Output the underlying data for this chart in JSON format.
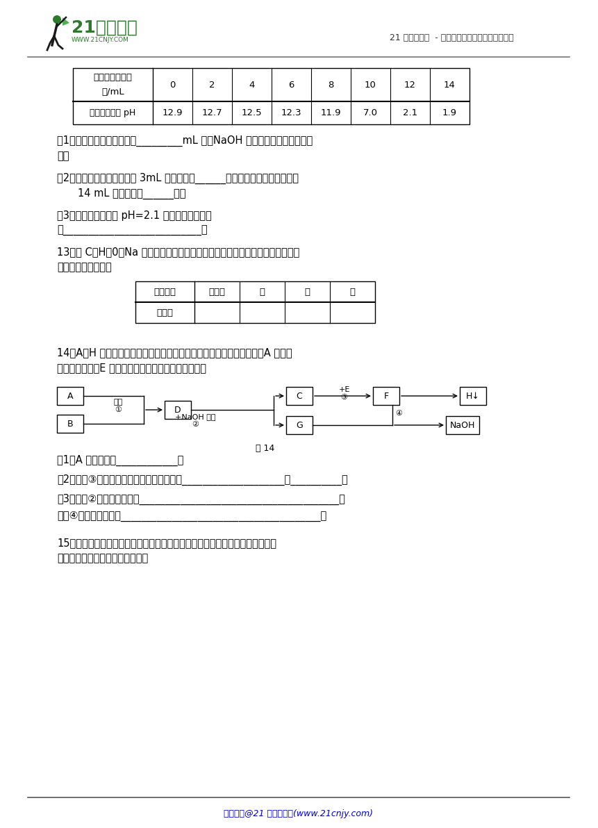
{
  "bg_color": "#ffffff",
  "header_right": "21 世纪教育网  - 中小学教育资源及组卷应用平台",
  "table1_cols": [
    "0",
    "2",
    "4",
    "6",
    "8",
    "10",
    "12",
    "14"
  ],
  "table1_row2_label": "烧杯中溶液的 pH",
  "table1_row2_vals": [
    "12.9",
    "12.7",
    "12.5",
    "12.3",
    "11.9",
    "7.0",
    "2.1",
    "1.9"
  ],
  "table2_header": [
    "物质类别",
    "氧化物",
    "酸",
    "碱",
    "盐"
  ],
  "footer_text": "版权所有@21 世纪教育网(www.21cnjy.com)"
}
